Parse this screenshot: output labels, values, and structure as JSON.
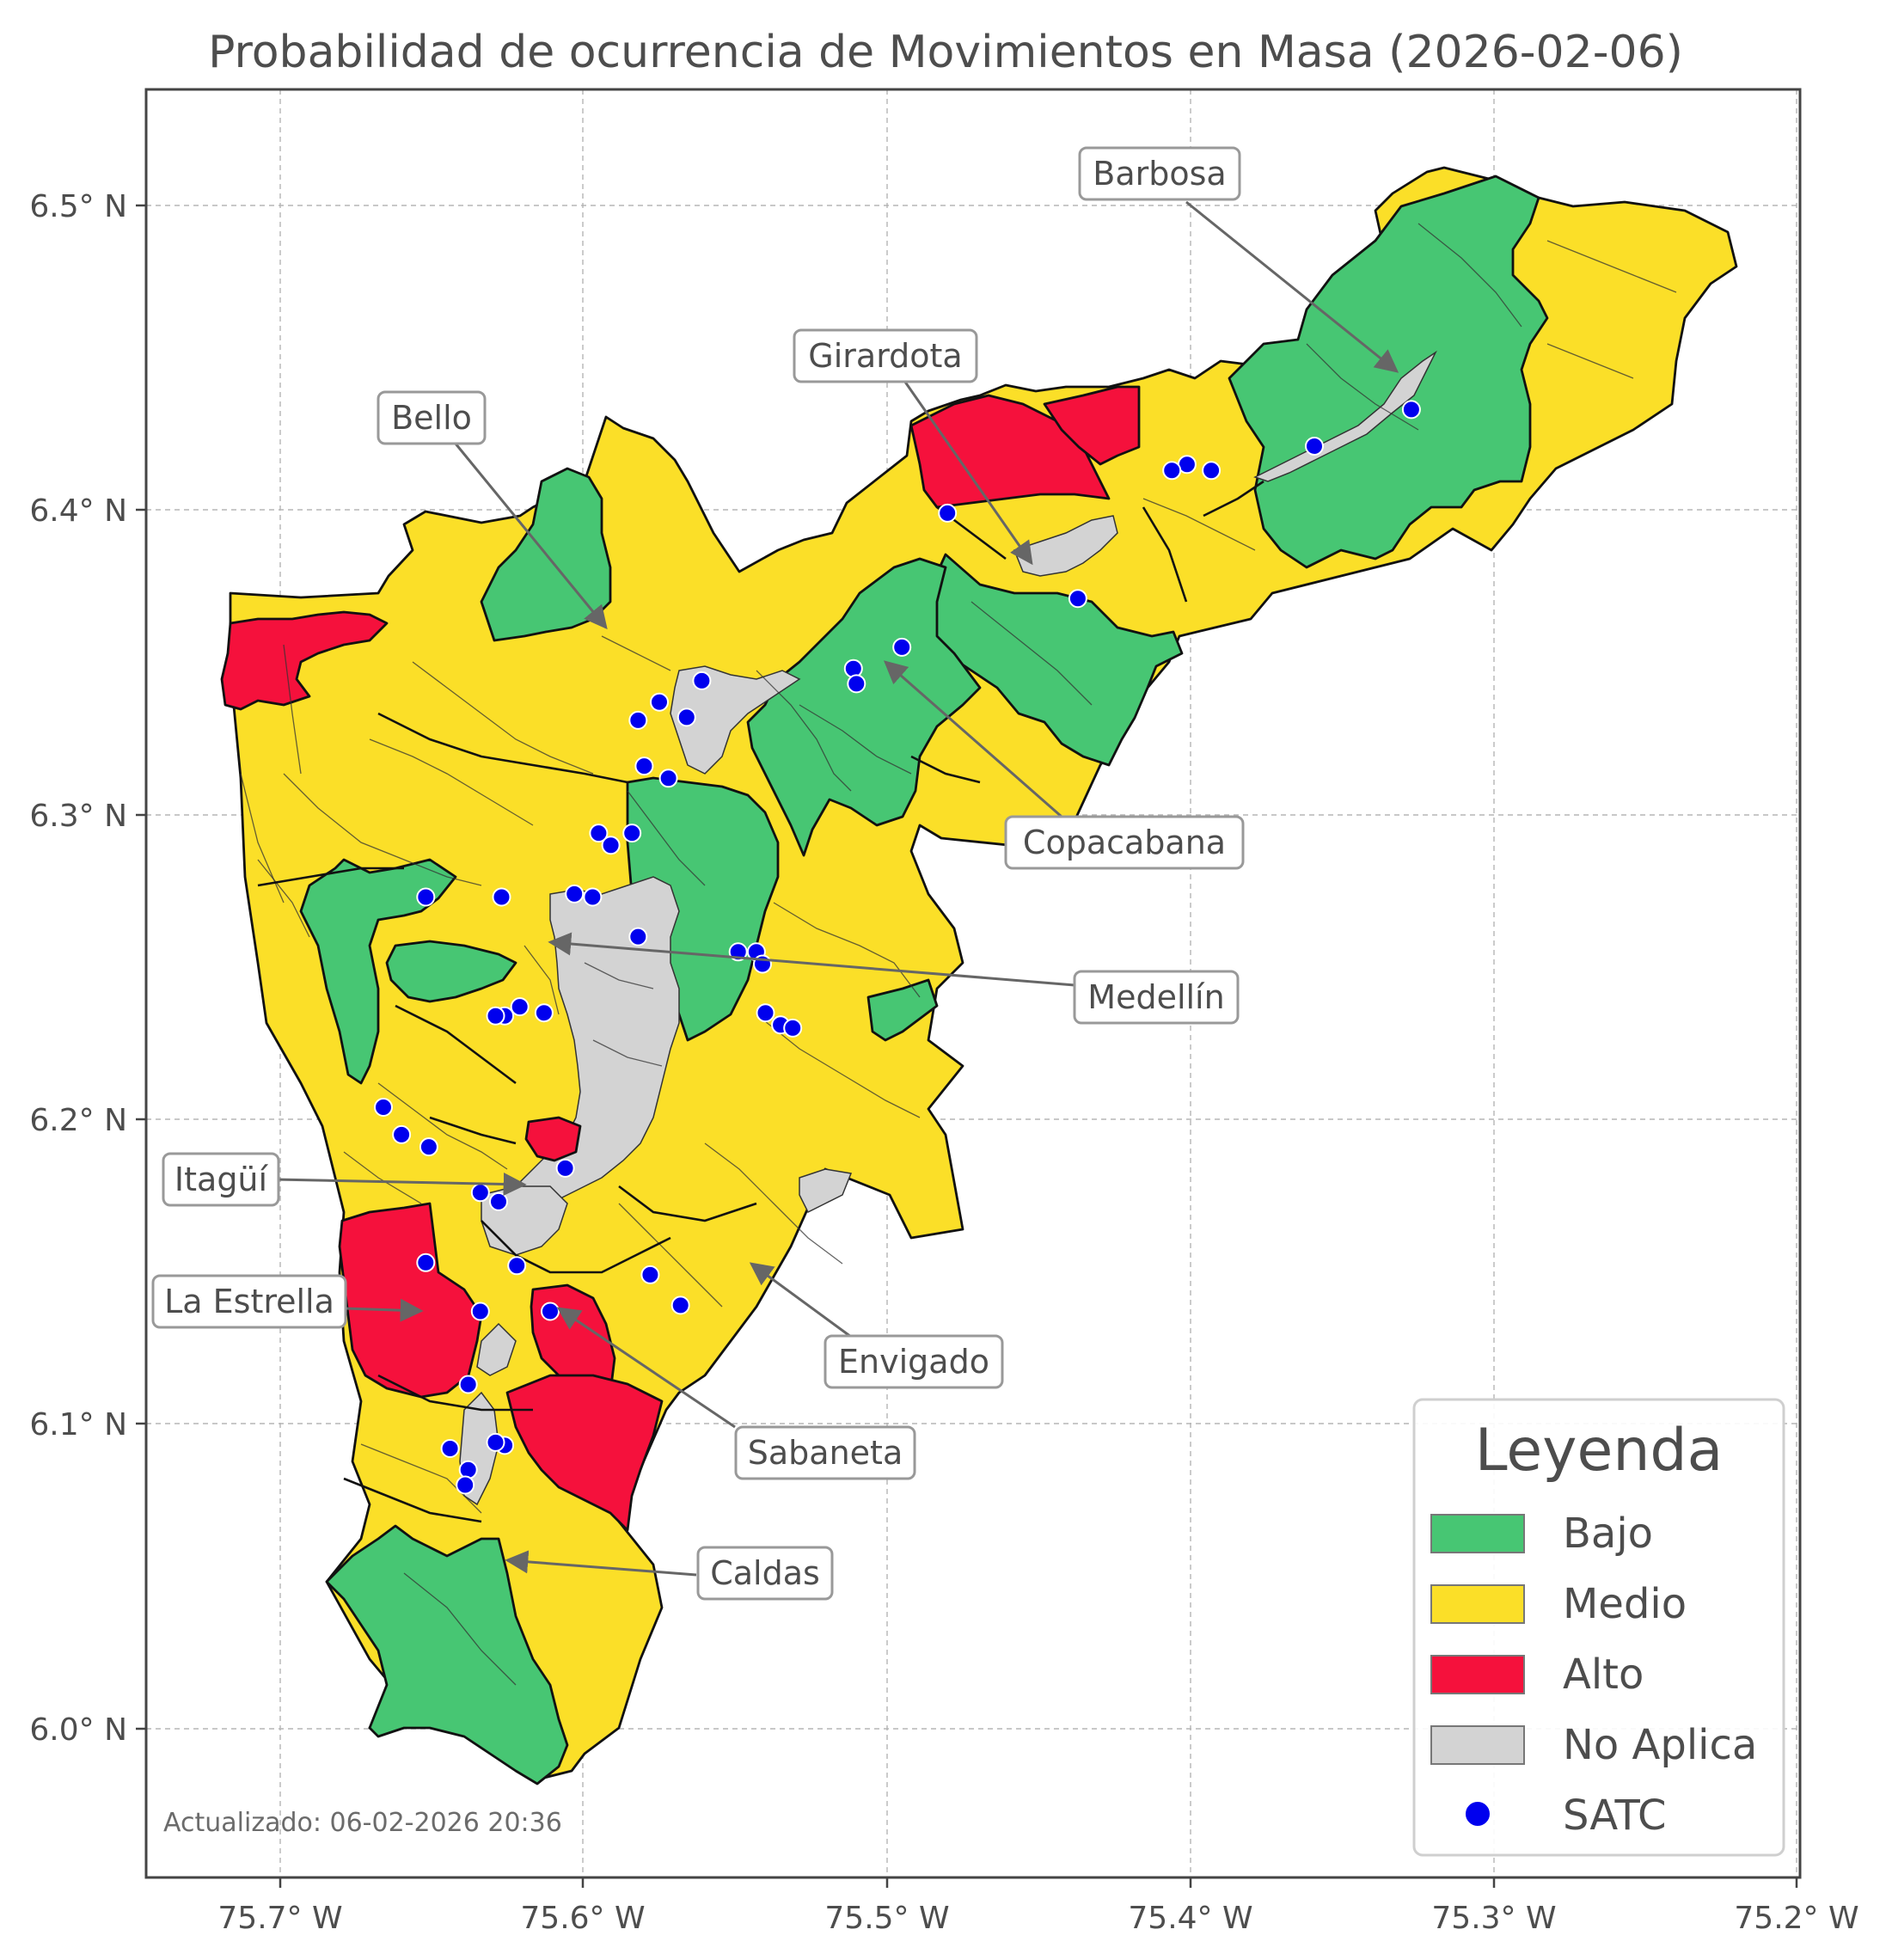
{
  "title": "Probabilidad de ocurrencia de Movimientos en Masa (2026-02-06)",
  "axes": {
    "x_ticks": [
      "75.7° W",
      "75.6° W",
      "75.5° W",
      "75.4° W",
      "75.3° W",
      "75.2° W"
    ],
    "y_ticks": [
      "6.5° N",
      "6.4° N",
      "6.3° N",
      "6.2° N",
      "6.1° N",
      "6.0° N"
    ]
  },
  "colors": {
    "bajo": "#47c673",
    "medio": "#fbdf28",
    "alto": "#f5113c",
    "no_aplica": "#d3d3d3",
    "satc": "#0000ee"
  },
  "callouts": [
    {
      "id": "barbosa",
      "label": "Barbosa"
    },
    {
      "id": "girardota",
      "label": "Girardota"
    },
    {
      "id": "bello",
      "label": "Bello"
    },
    {
      "id": "copacabana",
      "label": "Copacabana"
    },
    {
      "id": "medellin",
      "label": "Medellín"
    },
    {
      "id": "itagui",
      "label": "Itagüí"
    },
    {
      "id": "la-estrella",
      "label": "La Estrella"
    },
    {
      "id": "envigado",
      "label": "Envigado"
    },
    {
      "id": "sabaneta",
      "label": "Sabaneta"
    },
    {
      "id": "caldas",
      "label": "Caldas"
    }
  ],
  "legend": {
    "title": "Leyenda",
    "items": [
      {
        "label": "Bajo",
        "type": "patch",
        "color_key": "bajo"
      },
      {
        "label": "Medio",
        "type": "patch",
        "color_key": "medio"
      },
      {
        "label": "Alto",
        "type": "patch",
        "color_key": "alto"
      },
      {
        "label": "No Aplica",
        "type": "patch",
        "color_key": "no_aplica"
      },
      {
        "label": "SATC",
        "type": "marker",
        "color_key": "satc"
      }
    ]
  },
  "footer": "Actualizado: 06-02-2026 20:36",
  "satc_stations": [
    {
      "lon": -75.327,
      "lat": 6.433
    },
    {
      "lon": -75.359,
      "lat": 6.421
    },
    {
      "lon": -75.393,
      "lat": 6.413
    },
    {
      "lon": -75.401,
      "lat": 6.415
    },
    {
      "lon": -75.406,
      "lat": 6.413
    },
    {
      "lon": -75.48,
      "lat": 6.399
    },
    {
      "lon": -75.437,
      "lat": 6.371
    },
    {
      "lon": -75.495,
      "lat": 6.355
    },
    {
      "lon": -75.511,
      "lat": 6.348
    },
    {
      "lon": -75.51,
      "lat": 6.343
    },
    {
      "lon": -75.561,
      "lat": 6.344
    },
    {
      "lon": -75.575,
      "lat": 6.337
    },
    {
      "lon": -75.582,
      "lat": 6.331
    },
    {
      "lon": -75.566,
      "lat": 6.332
    },
    {
      "lon": -75.58,
      "lat": 6.316
    },
    {
      "lon": -75.572,
      "lat": 6.312
    },
    {
      "lon": -75.595,
      "lat": 6.294
    },
    {
      "lon": -75.584,
      "lat": 6.294
    },
    {
      "lon": -75.591,
      "lat": 6.29
    },
    {
      "lon": -75.652,
      "lat": 6.273
    },
    {
      "lon": -75.627,
      "lat": 6.273
    },
    {
      "lon": -75.603,
      "lat": 6.274
    },
    {
      "lon": -75.597,
      "lat": 6.273
    },
    {
      "lon": -75.582,
      "lat": 6.26
    },
    {
      "lon": -75.549,
      "lat": 6.255
    },
    {
      "lon": -75.543,
      "lat": 6.255
    },
    {
      "lon": -75.541,
      "lat": 6.251
    },
    {
      "lon": -75.621,
      "lat": 6.237
    },
    {
      "lon": -75.626,
      "lat": 6.234
    },
    {
      "lon": -75.629,
      "lat": 6.234
    },
    {
      "lon": -75.613,
      "lat": 6.235
    },
    {
      "lon": -75.54,
      "lat": 6.235
    },
    {
      "lon": -75.535,
      "lat": 6.231
    },
    {
      "lon": -75.531,
      "lat": 6.23
    },
    {
      "lon": -75.666,
      "lat": 6.204
    },
    {
      "lon": -75.66,
      "lat": 6.195
    },
    {
      "lon": -75.651,
      "lat": 6.191
    },
    {
      "lon": -75.606,
      "lat": 6.184
    },
    {
      "lon": -75.634,
      "lat": 6.176
    },
    {
      "lon": -75.628,
      "lat": 6.173
    },
    {
      "lon": -75.652,
      "lat": 6.153
    },
    {
      "lon": -75.622,
      "lat": 6.152
    },
    {
      "lon": -75.578,
      "lat": 6.149
    },
    {
      "lon": -75.568,
      "lat": 6.139
    },
    {
      "lon": -75.611,
      "lat": 6.137
    },
    {
      "lon": -75.634,
      "lat": 6.137
    },
    {
      "lon": -75.638,
      "lat": 6.113
    },
    {
      "lon": -75.626,
      "lat": 6.093
    },
    {
      "lon": -75.629,
      "lat": 6.094
    },
    {
      "lon": -75.644,
      "lat": 6.092
    },
    {
      "lon": -75.638,
      "lat": 6.085
    },
    {
      "lon": -75.639,
      "lat": 6.08
    }
  ]
}
